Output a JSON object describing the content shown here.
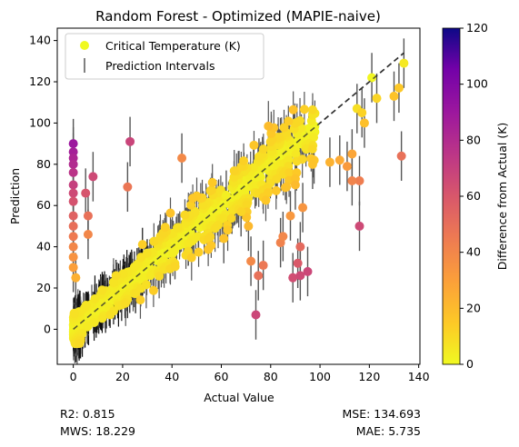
{
  "chart_data": {
    "type": "scatter",
    "title": "Random Forest - Optimized (MAPIE-naive)",
    "xlabel": "Actual Value",
    "ylabel": "Prediction",
    "xlim": [
      -6.5,
      140.5
    ],
    "ylim": [
      -17,
      146
    ],
    "xticks": [
      0,
      20,
      40,
      60,
      80,
      100,
      120,
      140
    ],
    "yticks": [
      0,
      20,
      40,
      60,
      80,
      100,
      120,
      140
    ],
    "legend": {
      "placement": "top-left",
      "entries": [
        "Critical Temperature (K)",
        "Prediction Intervals"
      ]
    },
    "colorbar": {
      "label": "Difference from Actual (K)",
      "range": [
        0,
        120
      ],
      "ticks": [
        0,
        20,
        40,
        60,
        80,
        100,
        120
      ],
      "colormap": "plasma_r"
    },
    "reference_line": {
      "from": [
        0,
        0
      ],
      "to": [
        134,
        134
      ],
      "style": "dashed",
      "color": "#333333"
    },
    "series": [
      {
        "style": "highlighted",
        "points": [
          [
            0,
            90,
            90
          ],
          [
            0,
            86,
            86
          ],
          [
            0,
            83,
            83
          ],
          [
            0,
            80,
            80
          ],
          [
            0,
            76,
            76
          ],
          [
            0,
            70,
            70
          ],
          [
            0,
            66,
            66
          ],
          [
            0,
            62,
            62
          ],
          [
            0,
            55,
            55
          ],
          [
            0,
            50,
            50
          ],
          [
            0,
            45,
            45
          ],
          [
            0,
            40,
            40
          ],
          [
            0,
            35,
            35
          ],
          [
            0,
            30,
            30
          ],
          [
            1,
            25,
            24
          ],
          [
            5,
            66,
            61
          ],
          [
            8,
            74,
            66
          ],
          [
            6,
            55,
            49
          ],
          [
            6,
            46,
            40
          ],
          [
            23,
            91,
            68
          ],
          [
            22,
            69,
            47
          ],
          [
            74,
            7,
            67
          ],
          [
            77,
            31,
            46
          ],
          [
            89,
            25,
            64
          ],
          [
            92,
            26,
            66
          ],
          [
            95,
            28,
            67
          ],
          [
            91,
            32,
            59
          ],
          [
            116,
            50,
            66
          ],
          [
            133,
            84,
            49
          ],
          [
            116,
            72,
            44
          ],
          [
            113,
            72,
            41
          ],
          [
            104,
            81,
            23
          ],
          [
            108,
            82,
            26
          ],
          [
            113,
            85,
            28
          ],
          [
            44,
            83,
            39
          ],
          [
            61,
            44,
            17
          ],
          [
            68,
            57,
            11
          ],
          [
            72,
            33,
            39
          ],
          [
            75,
            26,
            49
          ],
          [
            84,
            42,
            42
          ],
          [
            88,
            55,
            33
          ],
          [
            92,
            40,
            52
          ],
          [
            118,
            100,
            18
          ],
          [
            121,
            122,
            1
          ],
          [
            123,
            112,
            11
          ],
          [
            130,
            113,
            17
          ],
          [
            132,
            117,
            15
          ],
          [
            134,
            129,
            5
          ],
          [
            115,
            107,
            8
          ],
          [
            117,
            105,
            12
          ],
          [
            111,
            79,
            32
          ],
          [
            97,
            80,
            17
          ],
          [
            62,
            65,
            3
          ],
          [
            71,
            50,
            21
          ],
          [
            85,
            45,
            40
          ],
          [
            90,
            70,
            20
          ],
          [
            93,
            59,
            34
          ]
        ]
      },
      {
        "style": "dense-cloud",
        "note": "thousands of diagonal points with dark error bars",
        "points": []
      }
    ]
  },
  "stats": {
    "r2": "R2: 0.815",
    "mws": "MWS: 18.229",
    "mse": "MSE: 134.693",
    "mae": "MAE: 5.735"
  },
  "colors": {
    "bar_outline": "#000000",
    "error_bar": "#555555",
    "diagonal": "#333333"
  }
}
